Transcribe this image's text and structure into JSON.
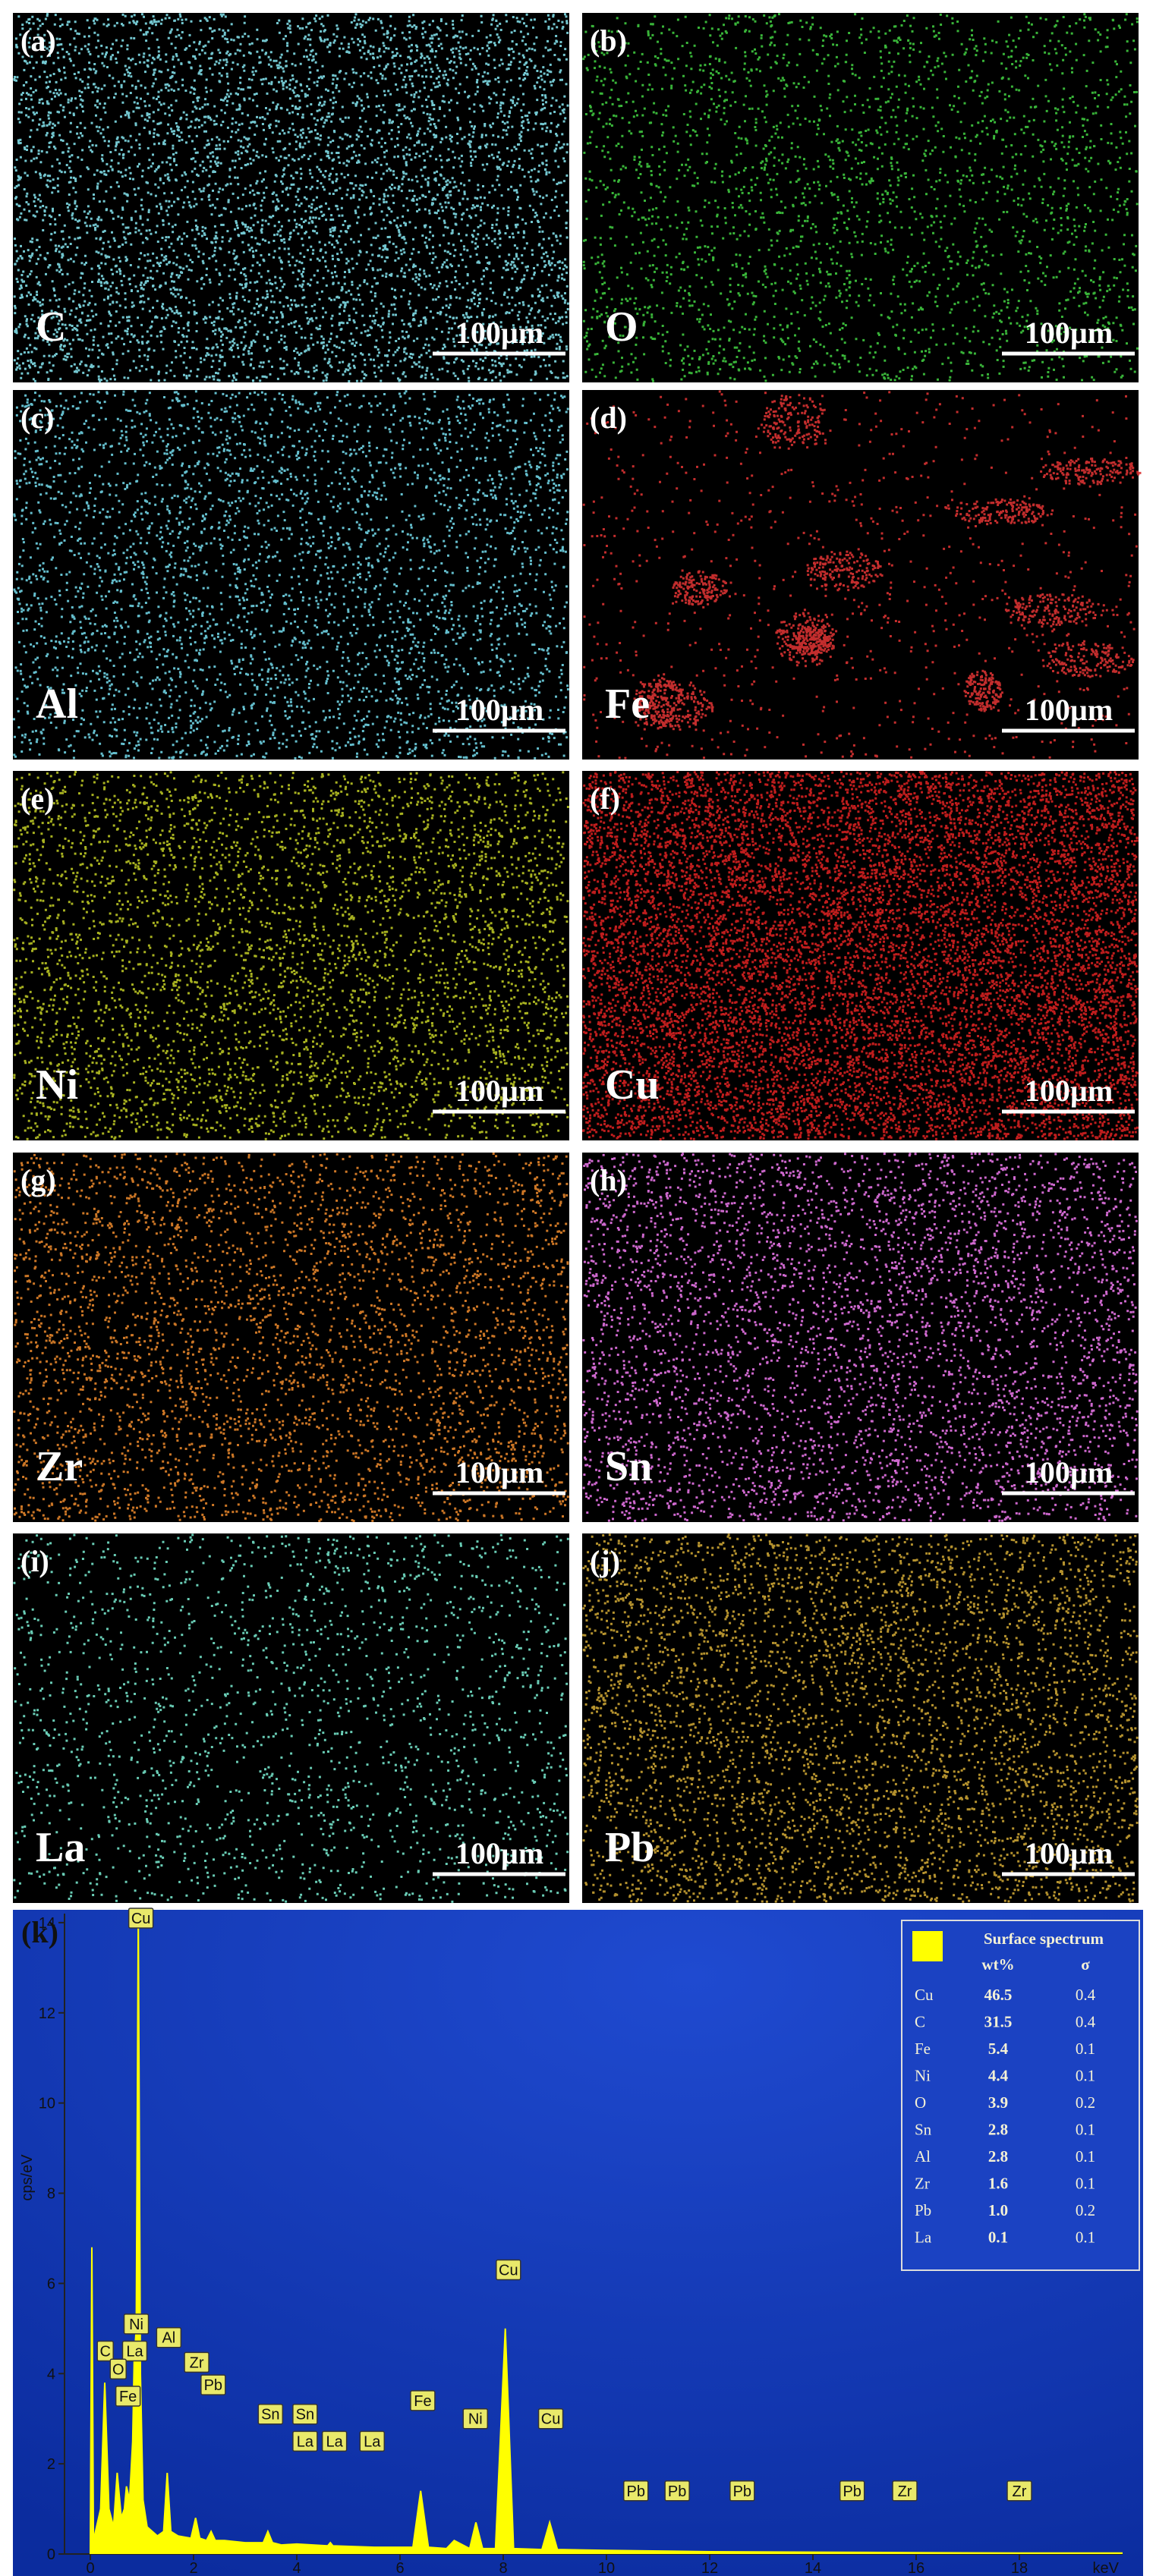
{
  "panels": [
    {
      "label": "(a)",
      "element": "C",
      "scale": "100µm",
      "color": "#7fdbe6"
    },
    {
      "label": "(b)",
      "element": "O",
      "scale": "100µm",
      "color": "#3fc83f"
    },
    {
      "label": "(c)",
      "element": "Al",
      "scale": "100µm",
      "color": "#6fd3e3"
    },
    {
      "label": "(d)",
      "element": "Fe",
      "scale": "100µm",
      "color": "#d83232"
    },
    {
      "label": "(e)",
      "element": "Ni",
      "scale": "100µm",
      "color": "#b9c423"
    },
    {
      "label": "(f)",
      "element": "Cu",
      "scale": "100µm",
      "color": "#d42020"
    },
    {
      "label": "(g)",
      "element": "Zr",
      "scale": "100µm",
      "color": "#e3842a"
    },
    {
      "label": "(h)",
      "element": "Sn",
      "scale": "100µm",
      "color": "#e473e4"
    },
    {
      "label": "(i)",
      "element": "La",
      "scale": "100µm",
      "color": "#74e2c9"
    },
    {
      "label": "(j)",
      "element": "Pb",
      "scale": "100µm",
      "color": "#c9a233"
    }
  ],
  "chart_data": {
    "type": "area",
    "label": "(k)",
    "y_label": "cps/eV",
    "x_label": "keV",
    "color": "#ffff00",
    "x": [
      0.0,
      0.03,
      0.06,
      0.1,
      0.2,
      0.28,
      0.36,
      0.45,
      0.52,
      0.6,
      0.66,
      0.7,
      0.76,
      0.82,
      0.85,
      0.89,
      0.93,
      0.97,
      1.02,
      1.1,
      1.3,
      1.42,
      1.49,
      1.56,
      1.7,
      1.95,
      2.04,
      2.12,
      2.25,
      2.34,
      2.42,
      2.6,
      3.0,
      3.35,
      3.44,
      3.53,
      3.7,
      4.0,
      4.6,
      4.65,
      4.7,
      5.5,
      6.25,
      6.4,
      6.55,
      6.9,
      7.05,
      7.35,
      7.47,
      7.6,
      7.85,
      8.04,
      8.2,
      8.75,
      8.9,
      9.05,
      10,
      12,
      14,
      16,
      18,
      20
    ],
    "values": [
      0,
      6.8,
      0.3,
      0.5,
      1.0,
      3.8,
      1.0,
      0.6,
      1.8,
      0.8,
      1.0,
      1.5,
      1.2,
      2.5,
      4.3,
      5.0,
      14.2,
      4,
      1.2,
      0.6,
      0.4,
      0.5,
      1.8,
      0.5,
      0.4,
      0.35,
      0.8,
      0.35,
      0.3,
      0.5,
      0.3,
      0.3,
      0.25,
      0.25,
      0.5,
      0.25,
      0.2,
      0.22,
      0.18,
      0.25,
      0.18,
      0.15,
      0.15,
      1.4,
      0.15,
      0.12,
      0.3,
      0.12,
      0.7,
      0.12,
      0.12,
      5.0,
      0.12,
      0.1,
      0.7,
      0.1,
      0.08,
      0.05,
      0.04,
      0.03,
      0.02,
      0.02
    ],
    "xlim": [
      -0.5,
      20
    ],
    "ylim": [
      0,
      14.2
    ],
    "xticks": [
      0,
      2,
      4,
      6,
      8,
      10,
      12,
      14,
      16,
      18
    ],
    "yticks": [
      0,
      2,
      4,
      6,
      8,
      10,
      12,
      14
    ],
    "peak_labels": [
      {
        "label": "Cu",
        "x": 0.98,
        "y": 14.1
      },
      {
        "label": "C",
        "x": 0.29,
        "y": 4.5
      },
      {
        "label": "Ni",
        "x": 0.89,
        "y": 5.1
      },
      {
        "label": "La",
        "x": 0.86,
        "y": 4.5
      },
      {
        "label": "O",
        "x": 0.54,
        "y": 4.1
      },
      {
        "label": "Fe",
        "x": 0.73,
        "y": 3.5
      },
      {
        "label": "Al",
        "x": 1.52,
        "y": 4.8
      },
      {
        "label": "Zr",
        "x": 2.06,
        "y": 4.25
      },
      {
        "label": "Pb",
        "x": 2.38,
        "y": 3.75
      },
      {
        "label": "Sn",
        "x": 3.49,
        "y": 3.1
      },
      {
        "label": "Sn",
        "x": 4.16,
        "y": 3.1
      },
      {
        "label": "La",
        "x": 4.16,
        "y": 2.5
      },
      {
        "label": "La",
        "x": 4.73,
        "y": 2.5
      },
      {
        "label": "La",
        "x": 5.46,
        "y": 2.5
      },
      {
        "label": "Fe",
        "x": 6.44,
        "y": 3.4
      },
      {
        "label": "Ni",
        "x": 7.46,
        "y": 3.0
      },
      {
        "label": "Cu",
        "x": 8.1,
        "y": 6.3
      },
      {
        "label": "Cu",
        "x": 8.92,
        "y": 3.0
      },
      {
        "label": "Pb",
        "x": 10.57,
        "y": 1.4
      },
      {
        "label": "Pb",
        "x": 11.37,
        "y": 1.4
      },
      {
        "label": "Pb",
        "x": 12.63,
        "y": 1.4
      },
      {
        "label": "Pb",
        "x": 14.76,
        "y": 1.4
      },
      {
        "label": "Zr",
        "x": 15.78,
        "y": 1.4
      },
      {
        "label": "Zr",
        "x": 18.0,
        "y": 1.4
      }
    ],
    "table": {
      "title": "Surface spectrum",
      "headers": [
        "wt%",
        "σ"
      ],
      "rows": [
        [
          "Cu",
          "46.5",
          "0.4"
        ],
        [
          "C",
          "31.5",
          "0.4"
        ],
        [
          "Fe",
          "5.4",
          "0.1"
        ],
        [
          "Ni",
          "4.4",
          "0.1"
        ],
        [
          "O",
          "3.9",
          "0.2"
        ],
        [
          "Sn",
          "2.8",
          "0.1"
        ],
        [
          "Al",
          "2.8",
          "0.1"
        ],
        [
          "Zr",
          "1.6",
          "0.1"
        ],
        [
          "Pb",
          "1.0",
          "0.2"
        ],
        [
          "La",
          "0.1",
          "0.1"
        ]
      ]
    }
  }
}
